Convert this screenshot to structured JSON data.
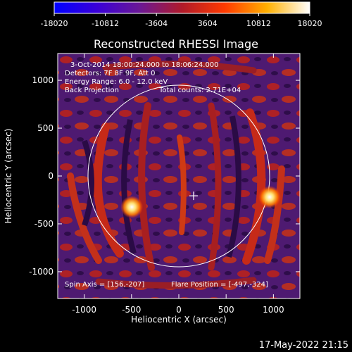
{
  "colorbar": {
    "ticks": [
      "-18020",
      "-10812",
      "-3604",
      "3604",
      "10812",
      "18020"
    ],
    "stops": [
      "#0000ff",
      "#3a00d8",
      "#6a1896",
      "#b01a2a",
      "#ff3a00",
      "#ffb000",
      "#ffffff"
    ]
  },
  "plot": {
    "title": "Reconstructed RHESSI Image",
    "xlabel": "Heliocentric X (arcsec)",
    "ylabel": "Heliocentric Y (arcsec)",
    "xticks": [
      "-1000",
      "-500",
      "0",
      "500",
      "1000"
    ],
    "yticks": [
      "1000",
      "500",
      "0",
      "-500",
      "-1000"
    ],
    "info": [
      "3-Oct-2014 18:00:24.000 to 18:06:24.000",
      "Detectors: 7F 8F 9F, Att 0",
      "Energy Range: 6.0 - 12.0 keV",
      "Back Projection",
      "Total counts: 2.71E+04"
    ],
    "footer_left": "Spin Axis = [156,-207]",
    "footer_right": "Flare Position = [-497,-324]"
  },
  "timestamp": "17-May-2022 21:15",
  "chart_data": {
    "type": "heatmap",
    "title": "Reconstructed RHESSI Image",
    "xlabel": "Heliocentric X (arcsec)",
    "ylabel": "Heliocentric Y (arcsec)",
    "xlim": [
      -1280,
      1280
    ],
    "ylim": [
      -1280,
      1280
    ],
    "color_range": [
      -18020,
      18020
    ],
    "solar_limb_center": [
      0,
      0
    ],
    "solar_limb_radius_arcsec": 960,
    "spin_axis": [
      156,
      -207
    ],
    "flare_position": [
      -497,
      -324
    ],
    "sources": [
      {
        "x": -497,
        "y": -324
      },
      {
        "x": 960,
        "y": -220
      }
    ]
  }
}
